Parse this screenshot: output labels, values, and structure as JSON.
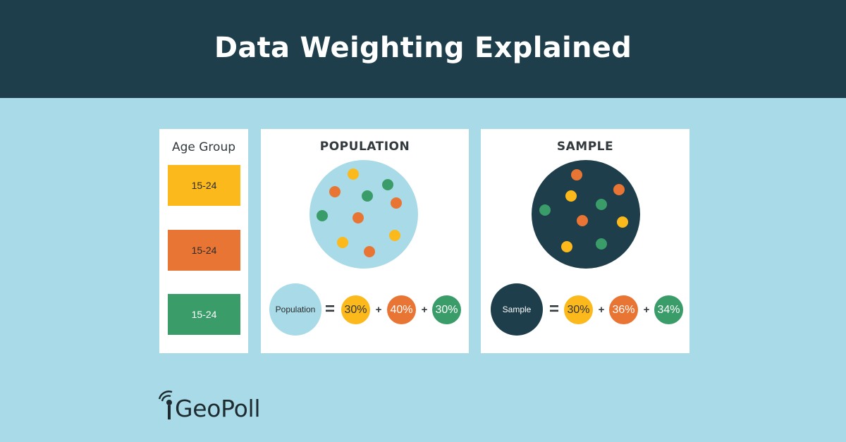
{
  "header": {
    "title": "Data Weighting Explained"
  },
  "age_group": {
    "title": "Age Group",
    "items": [
      {
        "label": "15-24",
        "color": "#fbb91c"
      },
      {
        "label": "15-24",
        "color": "#e97534"
      },
      {
        "label": "15-24",
        "color": "#3a9c69"
      }
    ]
  },
  "population": {
    "title": "POPULATION",
    "circle_color": "#a8dbe7",
    "legend_label": "Population",
    "equals": "=",
    "plus": "+",
    "percentages": [
      {
        "value": "30%",
        "color": "#fbb91c"
      },
      {
        "value": "40%",
        "color": "#e97534"
      },
      {
        "value": "30%",
        "color": "#3a9c69"
      }
    ]
  },
  "sample": {
    "title": "SAMPLE",
    "circle_color": "#1d3e4a",
    "legend_label": "Sample",
    "equals": "=",
    "plus": "+",
    "percentages": [
      {
        "value": "30%",
        "color": "#fbb91c"
      },
      {
        "value": "36%",
        "color": "#e97534"
      },
      {
        "value": "34%",
        "color": "#3a9c69"
      }
    ]
  },
  "colors": {
    "header_bg": "#1d3e4a",
    "page_bg": "#a8dbe7",
    "yellow": "#fbb91c",
    "orange": "#e97534",
    "green": "#3a9c69"
  },
  "logo": {
    "text": "GeoPoll",
    "icon": "signal-antenna-icon"
  }
}
